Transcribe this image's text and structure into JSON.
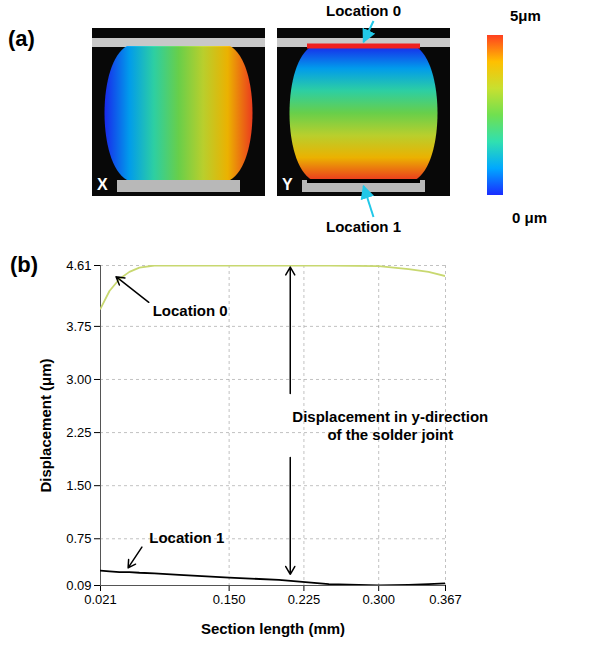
{
  "panel_a": {
    "label": "(a)",
    "images": [
      {
        "label": "X"
      },
      {
        "label": "Y"
      }
    ],
    "locations": [
      "Location 0",
      "Location 1"
    ],
    "colorbar": {
      "range": [
        0,
        5
      ],
      "ticks": [
        {
          "value": 0,
          "label": "0 μm"
        },
        {
          "value": 5,
          "label": "5μm"
        }
      ]
    }
  },
  "chart_data": {
    "type": "line",
    "label": "(b)",
    "x_label": "Section length (mm)",
    "y_label": "Displacement (μm)",
    "annotation": "Displacement in y-direction of the solder joint",
    "x": [
      0.021,
      0.03,
      0.04,
      0.05,
      0.06,
      0.075,
      0.1,
      0.15,
      0.2,
      0.25,
      0.3,
      0.33,
      0.35,
      0.367
    ],
    "series": [
      {
        "name": "Location 0",
        "color": "#c8d870",
        "values": [
          4.0,
          4.25,
          4.42,
          4.52,
          4.58,
          4.61,
          4.61,
          4.61,
          4.61,
          4.61,
          4.6,
          4.56,
          4.52,
          4.46
        ]
      },
      {
        "name": "Location 1",
        "color": "#000000",
        "values": [
          0.3,
          0.29,
          0.28,
          0.28,
          0.27,
          0.26,
          0.24,
          0.2,
          0.17,
          0.11,
          0.09,
          0.1,
          0.11,
          0.12
        ]
      }
    ],
    "xlim": [
      0.021,
      0.367
    ],
    "xticks": [
      0.021,
      {
        "value": 0.15,
        "label": "0.150"
      },
      0.225,
      {
        "value": 0.3,
        "label": "0.300"
      },
      0.367
    ],
    "ylim": [
      0.09,
      4.61
    ],
    "yticks": [
      0.09,
      0.75,
      {
        "value": 1.5,
        "label": "1.50"
      },
      2.25,
      {
        "value": 3,
        "label": "3.00"
      },
      3.75,
      4.61
    ],
    "grid": true
  }
}
